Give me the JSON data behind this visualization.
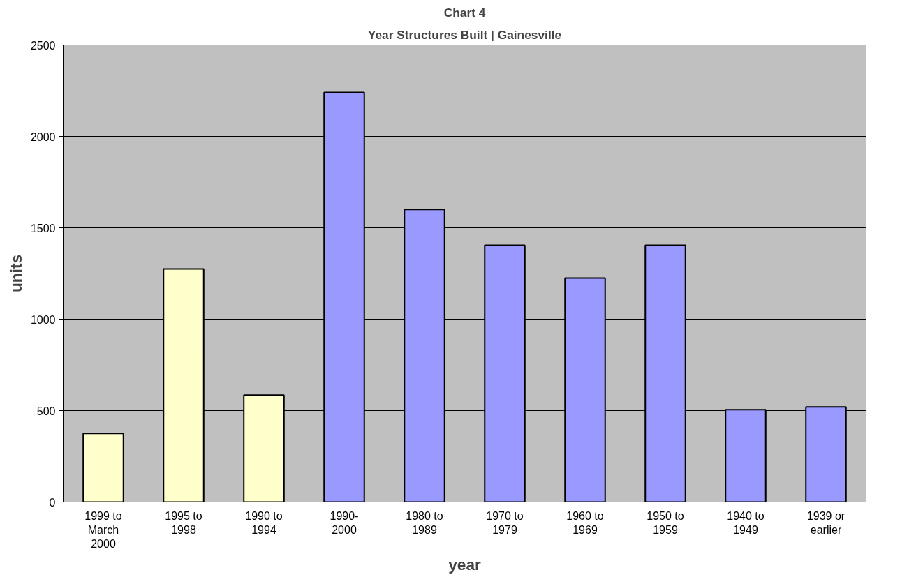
{
  "chart_data": {
    "type": "bar",
    "title": "Chart 4",
    "subtitle": "Year Structures Built | Gainesville",
    "xlabel": "year",
    "ylabel": "units",
    "categories": [
      "1999 to\nMarch\n2000",
      "1995 to\n1998",
      "1990 to\n1994",
      "1990-\n2000",
      "1980 to\n1989",
      "1970 to\n1979",
      "1960 to\n1969",
      "1950 to\n1959",
      "1940 to\n1949",
      "1939 or\nearlier"
    ],
    "values": [
      375,
      1275,
      585,
      2240,
      1600,
      1405,
      1225,
      1405,
      505,
      520
    ],
    "colors": [
      "#ffffcc",
      "#ffffcc",
      "#ffffcc",
      "#9999ff",
      "#9999ff",
      "#9999ff",
      "#9999ff",
      "#9999ff",
      "#9999ff",
      "#9999ff"
    ],
    "ylim": [
      0,
      2500
    ],
    "yticks": [
      0,
      500,
      1000,
      1500,
      2000,
      2500
    ],
    "grid": "y"
  }
}
